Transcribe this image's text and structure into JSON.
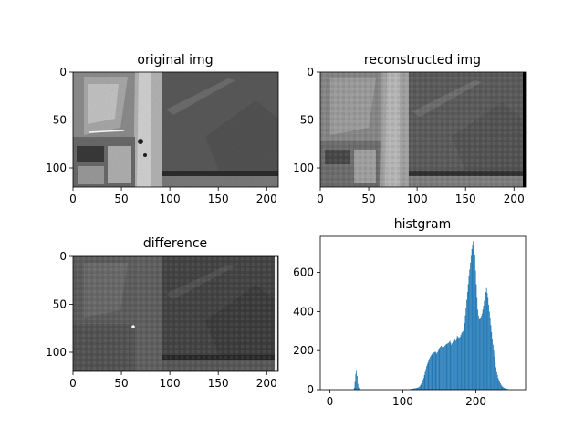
{
  "figure": {
    "panels": [
      {
        "id": "p1",
        "title": "original img",
        "type": "image"
      },
      {
        "id": "p2",
        "title": "reconstructed img",
        "type": "image"
      },
      {
        "id": "p3",
        "title": "difference",
        "type": "image"
      },
      {
        "id": "p4",
        "title": "histgram",
        "type": "bar"
      }
    ]
  },
  "chart_data": [
    {
      "type": "image",
      "title": "original img",
      "image_size": [
        212,
        120
      ],
      "xlim": [
        0,
        212
      ],
      "ylim": [
        120,
        0
      ],
      "xticks": [
        0,
        50,
        100,
        150,
        200
      ],
      "yticks": [
        0,
        50,
        100
      ],
      "colormap": "gray"
    },
    {
      "type": "image",
      "title": "reconstructed img",
      "image_size": [
        212,
        120
      ],
      "xlim": [
        0,
        212
      ],
      "ylim": [
        120,
        0
      ],
      "xticks": [
        0,
        50,
        100,
        150,
        200
      ],
      "yticks": [
        0,
        50,
        100
      ],
      "colormap": "gray"
    },
    {
      "type": "image",
      "title": "difference",
      "image_size": [
        212,
        120
      ],
      "xlim": [
        0,
        212
      ],
      "ylim": [
        120,
        0
      ],
      "xticks": [
        0,
        50,
        100,
        150,
        200
      ],
      "yticks": [
        0,
        50,
        100
      ],
      "colormap": "gray"
    },
    {
      "type": "bar",
      "title": "histgram",
      "color": "#1f77b4",
      "xlim": [
        -13,
        268
      ],
      "ylim": [
        0,
        785
      ],
      "xticks": [
        0,
        100,
        200
      ],
      "yticks": [
        0,
        200,
        400,
        600
      ],
      "bins": {
        "x": [
          33,
          34,
          35,
          36,
          37,
          38,
          39,
          40,
          110,
          115,
          120,
          122,
          124,
          126,
          128,
          130,
          132,
          134,
          136,
          138,
          140,
          142,
          144,
          146,
          148,
          150,
          152,
          154,
          156,
          158,
          160,
          162,
          164,
          166,
          168,
          170,
          172,
          174,
          176,
          178,
          180,
          182,
          184,
          186,
          188,
          190,
          192,
          194,
          195,
          196,
          197,
          198,
          199,
          200,
          201,
          202,
          203,
          204,
          206,
          208,
          210,
          212,
          214,
          216,
          218,
          220,
          222,
          224,
          226,
          228,
          230,
          232,
          234,
          236,
          238,
          240,
          242,
          244
        ],
        "y": [
          10,
          40,
          80,
          95,
          70,
          30,
          12,
          5,
          3,
          6,
          10,
          15,
          25,
          40,
          60,
          90,
          120,
          140,
          160,
          175,
          185,
          190,
          195,
          185,
          200,
          215,
          225,
          215,
          220,
          230,
          235,
          240,
          250,
          230,
          245,
          260,
          250,
          275,
          265,
          270,
          290,
          300,
          340,
          420,
          500,
          580,
          650,
          720,
          740,
          760,
          745,
          690,
          610,
          540,
          470,
          410,
          380,
          360,
          365,
          390,
          430,
          480,
          520,
          470,
          400,
          330,
          260,
          200,
          140,
          90,
          60,
          40,
          25,
          15,
          10,
          6,
          4,
          2
        ]
      }
    }
  ]
}
